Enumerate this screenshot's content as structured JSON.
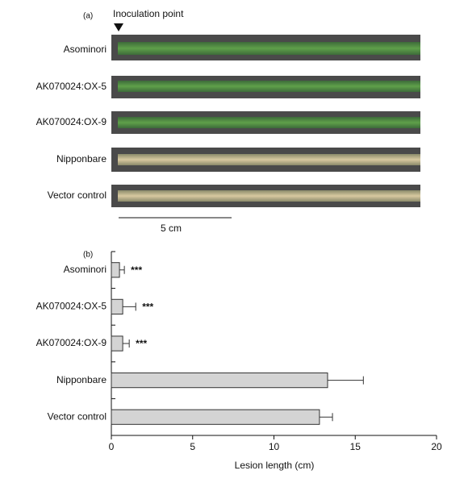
{
  "panel_a": {
    "label": "(a)",
    "marker_label": "Inoculation point",
    "leaves": [
      "Asominori",
      "AK070024:OX-5",
      "AK070024:OX-9",
      "Nipponbare",
      "Vector control"
    ],
    "scale_bar": "5 cm"
  },
  "chart_data": {
    "type": "bar",
    "orientation": "horizontal",
    "panel_label": "(b)",
    "categories": [
      "Asominori",
      "AK070024:OX-5",
      "AK070024:OX-9",
      "Nipponbare",
      "Vector control"
    ],
    "values": [
      0.5,
      0.7,
      0.7,
      13.3,
      12.8
    ],
    "errors": [
      0.3,
      0.8,
      0.4,
      2.2,
      0.8
    ],
    "significance": [
      "***",
      "***",
      "***",
      null,
      null
    ],
    "color": "#d4d4d4",
    "xlim": [
      0,
      20
    ],
    "xticks": [
      0,
      5,
      10,
      15,
      20
    ],
    "x_label": "Lesion length (cm)"
  }
}
